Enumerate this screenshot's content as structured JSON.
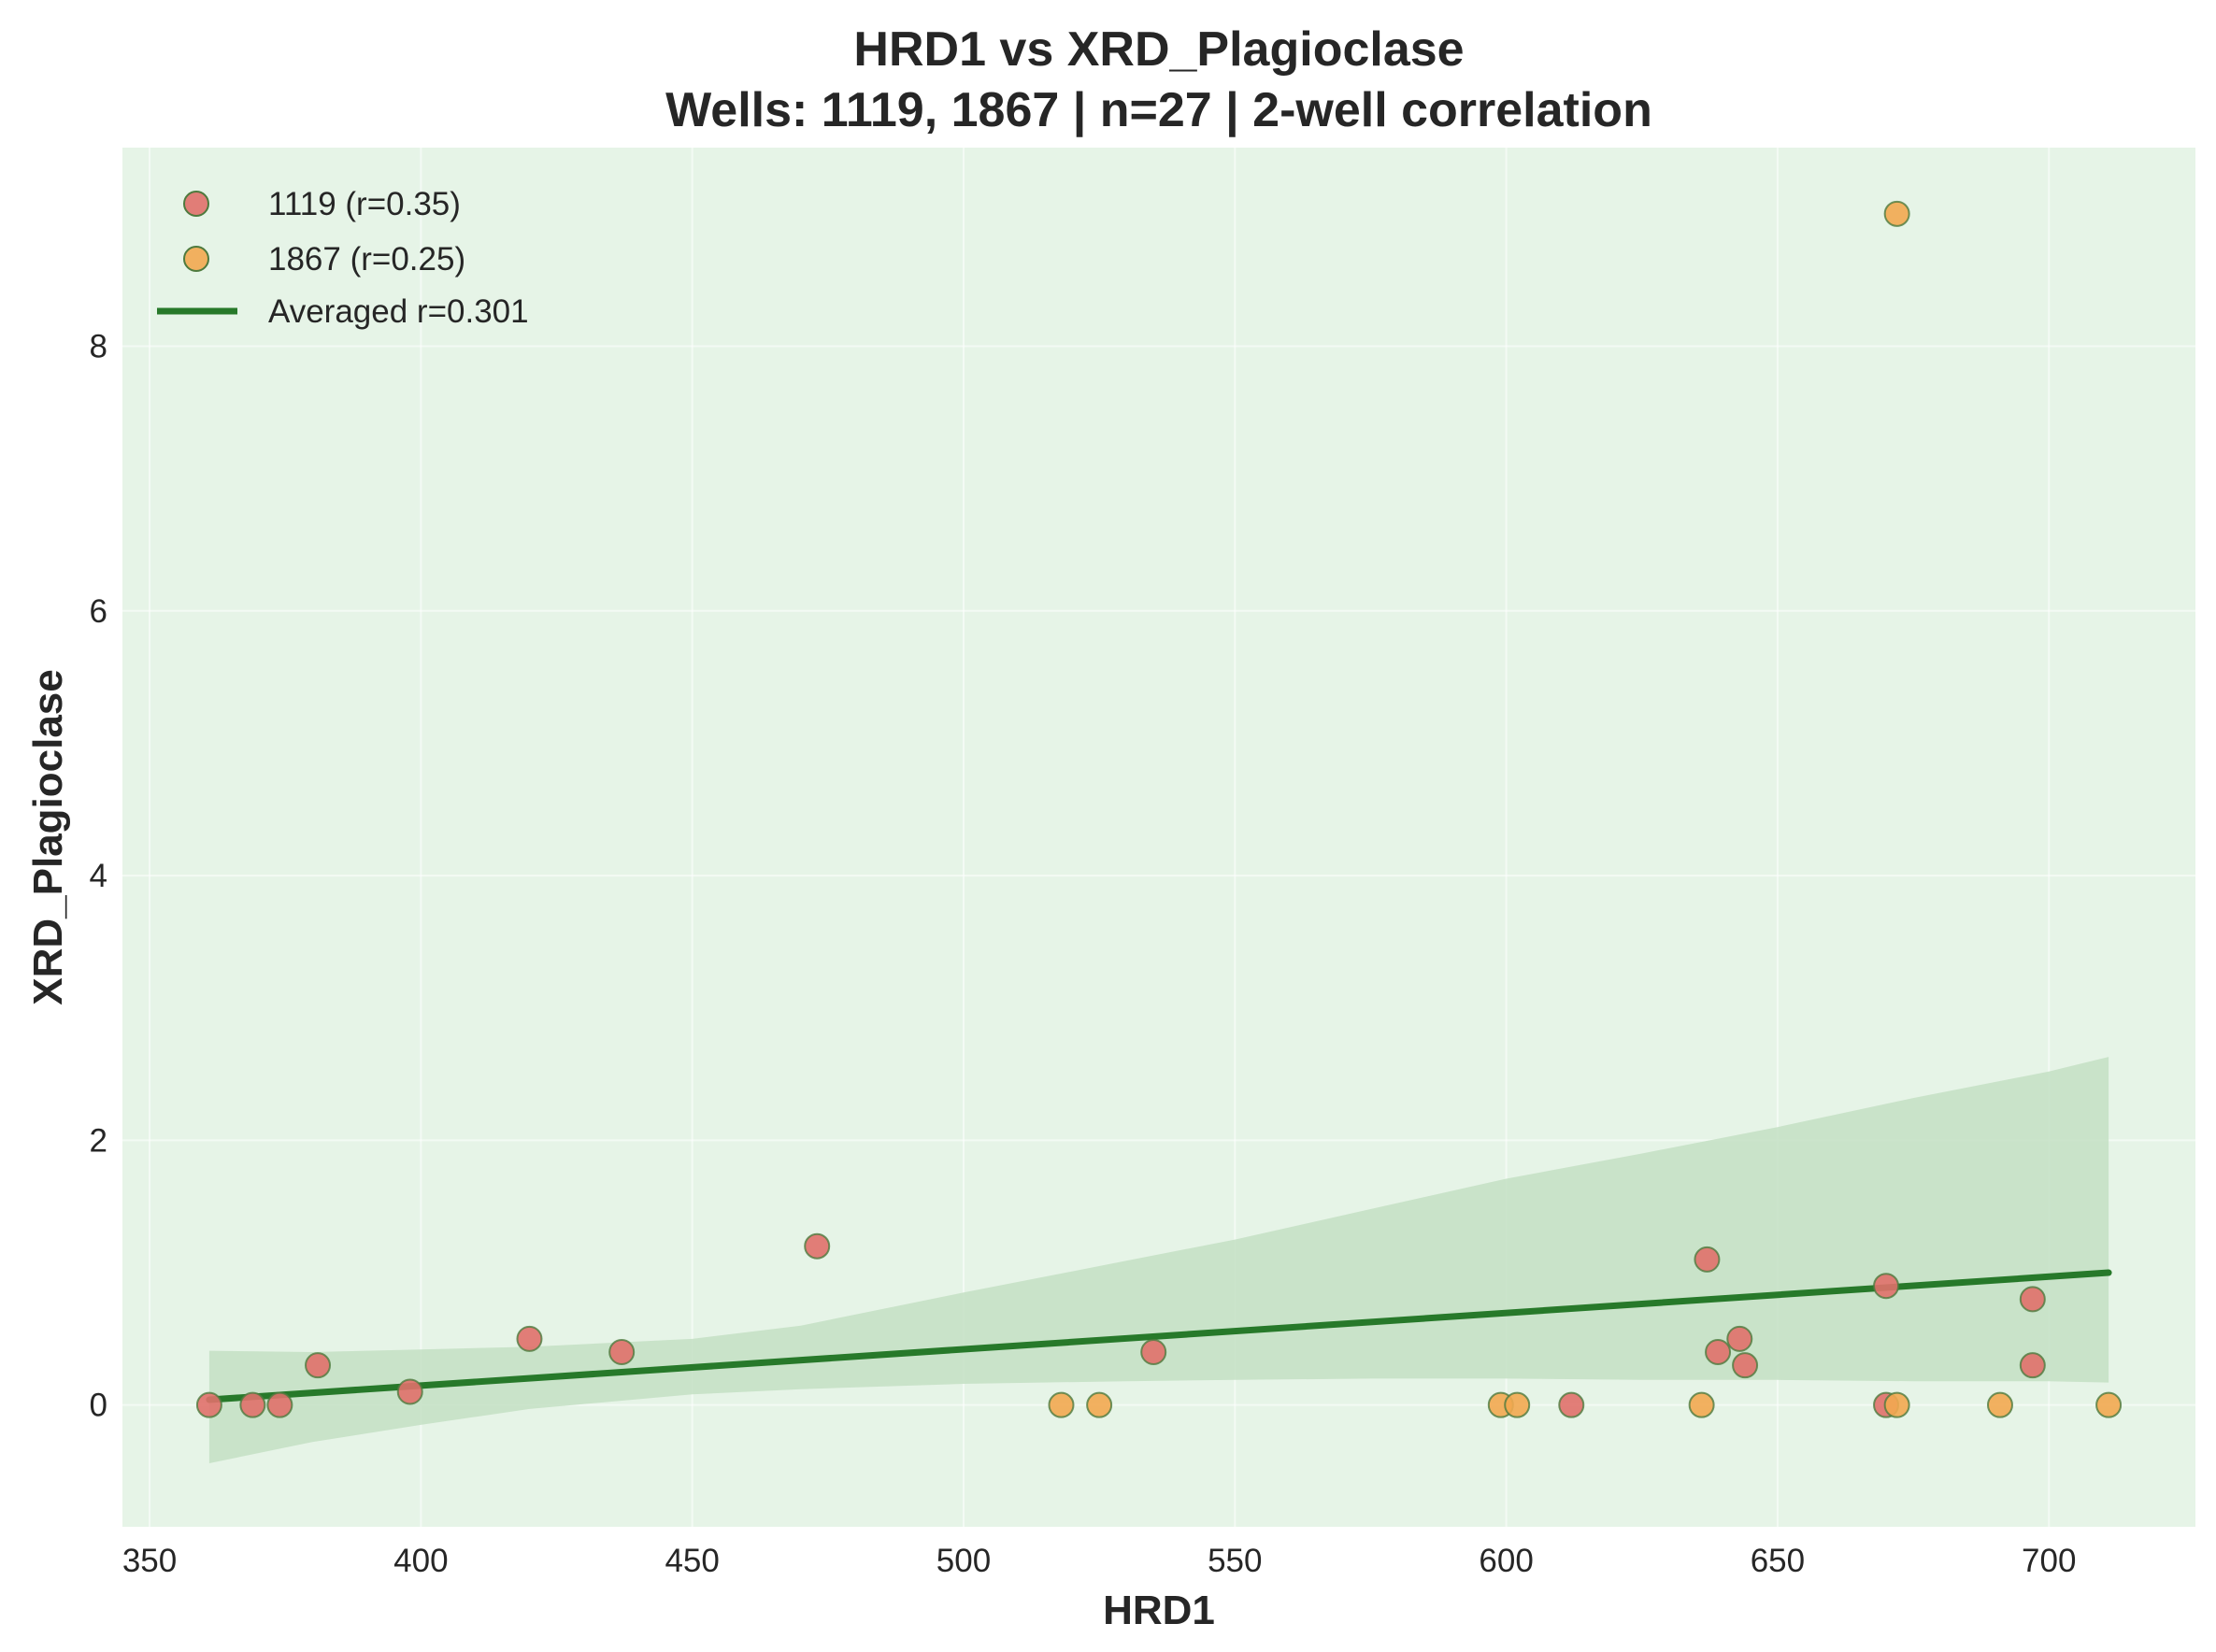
{
  "chart_data": {
    "type": "scatter",
    "title": "HRD1 vs XRD_Plagioclase",
    "subtitle": "Wells: 1119, 1867 | n=27 | 2-well correlation",
    "xlabel": "HRD1",
    "ylabel": "XRD_Plagioclase",
    "xlim": [
      345,
      727
    ],
    "ylim": [
      -0.92,
      9.5
    ],
    "xticks": [
      350,
      400,
      450,
      500,
      550,
      600,
      650,
      700
    ],
    "yticks": [
      0,
      2,
      4,
      6,
      8
    ],
    "grid": true,
    "legend_position": "upper-left",
    "colors": {
      "plot_background": "#e6f4e7",
      "series_1119": "#e0706a",
      "series_1867": "#f2a950",
      "point_edge": "#4e7a3e",
      "fit_line": "#27792a",
      "confidence_band": "#c3dfc3"
    },
    "series": [
      {
        "name": "1119 (r=0.35)",
        "x": [
          361,
          369,
          374,
          381,
          398,
          420,
          437,
          473,
          535,
          612,
          637,
          639,
          643,
          644,
          670,
          670,
          697,
          697
        ],
        "y": [
          0,
          0,
          0,
          0.3,
          0.1,
          0.5,
          0.4,
          1.2,
          0.4,
          0,
          1.1,
          0.4,
          0.5,
          0.3,
          0.9,
          0,
          0.3,
          0.8
        ]
      },
      {
        "name": "1867 (r=0.25)",
        "x": [
          518,
          525,
          599,
          602,
          636,
          672,
          672,
          691,
          711
        ],
        "y": [
          0,
          0,
          0,
          0,
          0,
          9.0,
          0,
          0,
          0
        ]
      }
    ],
    "fit": {
      "name": "Averaged r=0.301",
      "x": [
        361,
        711
      ],
      "y": [
        0.04,
        1.0
      ]
    },
    "confidence_band": {
      "x": [
        361,
        380,
        400,
        420,
        450,
        470,
        500,
        530,
        550,
        575,
        600,
        625,
        650,
        675,
        700,
        711
      ],
      "upper": [
        0.41,
        0.4,
        0.42,
        0.44,
        0.5,
        0.6,
        0.85,
        1.09,
        1.25,
        1.48,
        1.71,
        1.9,
        2.1,
        2.32,
        2.52,
        2.63
      ],
      "lower": [
        -0.44,
        -0.28,
        -0.15,
        -0.03,
        0.08,
        0.12,
        0.16,
        0.18,
        0.19,
        0.2,
        0.2,
        0.19,
        0.19,
        0.18,
        0.18,
        0.17
      ]
    }
  }
}
